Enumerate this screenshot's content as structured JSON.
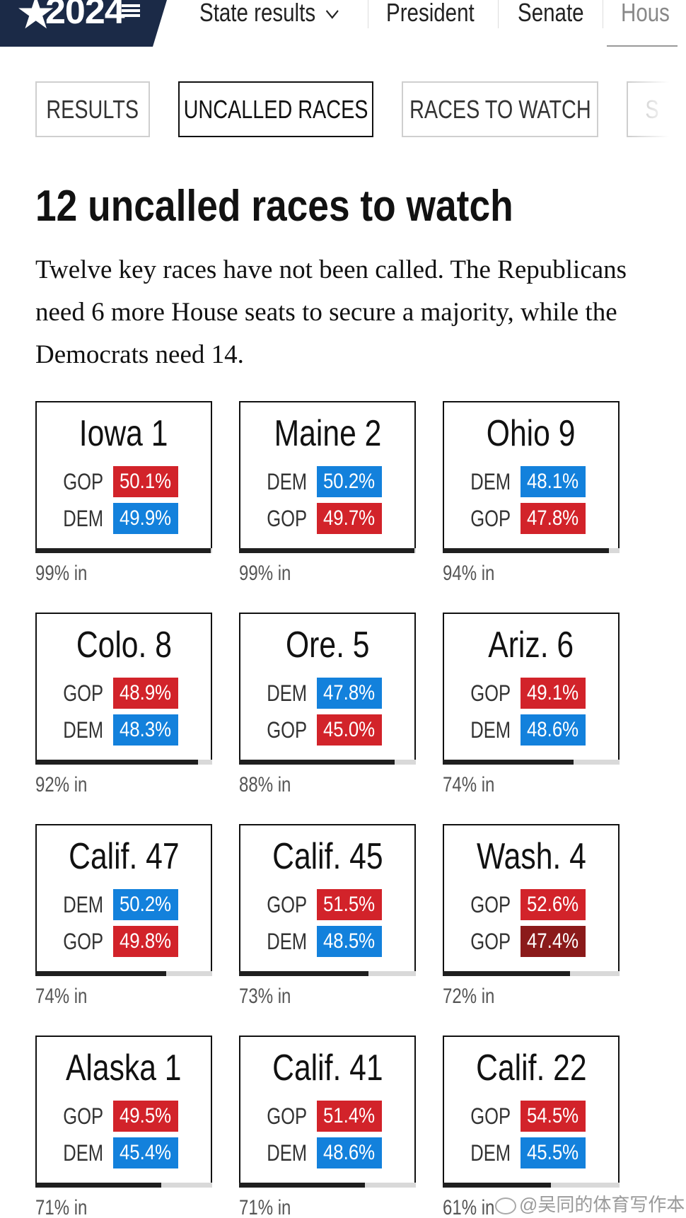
{
  "nav": {
    "logo_year": "2024",
    "items": [
      "State results",
      "President",
      "Senate",
      "Hous"
    ],
    "state_results_chevron": "chevron-down-icon"
  },
  "tabs": [
    "RESULTS",
    "UNCALLED RACES",
    "RACES TO WATCH",
    "S"
  ],
  "active_tab": "UNCALLED RACES",
  "headline": "12 uncalled races to watch",
  "intro": "Twelve key races have not been called. The Republicans need 6 more House seats to secure a majority, while the Democrats need 14.",
  "colors": {
    "gop": "#d2232a",
    "dem": "#1381dc",
    "gop_dark": "#8b1a1a",
    "nav_bg": "#1b2a47"
  },
  "races": [
    {
      "name": "Iowa 1",
      "reporting_label": "99% in",
      "reporting": 0.99,
      "candidates": [
        {
          "party": "GOP",
          "pct": "50.1%"
        },
        {
          "party": "DEM",
          "pct": "49.9%"
        }
      ]
    },
    {
      "name": "Maine 2",
      "reporting_label": "99% in",
      "reporting": 0.99,
      "candidates": [
        {
          "party": "DEM",
          "pct": "50.2%"
        },
        {
          "party": "GOP",
          "pct": "49.7%"
        }
      ]
    },
    {
      "name": "Ohio 9",
      "reporting_label": "94% in",
      "reporting": 0.94,
      "candidates": [
        {
          "party": "DEM",
          "pct": "48.1%"
        },
        {
          "party": "GOP",
          "pct": "47.8%"
        }
      ]
    },
    {
      "name": "Colo. 8",
      "reporting_label": "92% in",
      "reporting": 0.92,
      "candidates": [
        {
          "party": "GOP",
          "pct": "48.9%"
        },
        {
          "party": "DEM",
          "pct": "48.3%"
        }
      ]
    },
    {
      "name": "Ore. 5",
      "reporting_label": "88% in",
      "reporting": 0.88,
      "candidates": [
        {
          "party": "DEM",
          "pct": "47.8%"
        },
        {
          "party": "GOP",
          "pct": "45.0%"
        }
      ]
    },
    {
      "name": "Ariz. 6",
      "reporting_label": "74% in",
      "reporting": 0.74,
      "candidates": [
        {
          "party": "GOP",
          "pct": "49.1%"
        },
        {
          "party": "DEM",
          "pct": "48.6%"
        }
      ]
    },
    {
      "name": "Calif. 47",
      "reporting_label": "74% in",
      "reporting": 0.74,
      "candidates": [
        {
          "party": "DEM",
          "pct": "50.2%"
        },
        {
          "party": "GOP",
          "pct": "49.8%"
        }
      ]
    },
    {
      "name": "Calif. 45",
      "reporting_label": "73% in",
      "reporting": 0.73,
      "candidates": [
        {
          "party": "GOP",
          "pct": "51.5%"
        },
        {
          "party": "DEM",
          "pct": "48.5%"
        }
      ]
    },
    {
      "name": "Wash. 4",
      "reporting_label": "72% in",
      "reporting": 0.72,
      "candidates": [
        {
          "party": "GOP",
          "pct": "52.6%"
        },
        {
          "party": "GOP",
          "pct": "47.4%",
          "shade": "dark"
        }
      ]
    },
    {
      "name": "Alaska 1",
      "reporting_label": "71% in",
      "reporting": 0.71,
      "candidates": [
        {
          "party": "GOP",
          "pct": "49.5%"
        },
        {
          "party": "DEM",
          "pct": "45.4%"
        }
      ]
    },
    {
      "name": "Calif. 41",
      "reporting_label": "71% in",
      "reporting": 0.71,
      "candidates": [
        {
          "party": "GOP",
          "pct": "51.4%"
        },
        {
          "party": "DEM",
          "pct": "48.6%"
        }
      ]
    },
    {
      "name": "Calif. 22",
      "reporting_label": "61% in",
      "reporting": 0.61,
      "candidates": [
        {
          "party": "GOP",
          "pct": "54.5%"
        },
        {
          "party": "DEM",
          "pct": "45.5%"
        }
      ]
    }
  ],
  "watermark": "@吴同的体育写作本"
}
